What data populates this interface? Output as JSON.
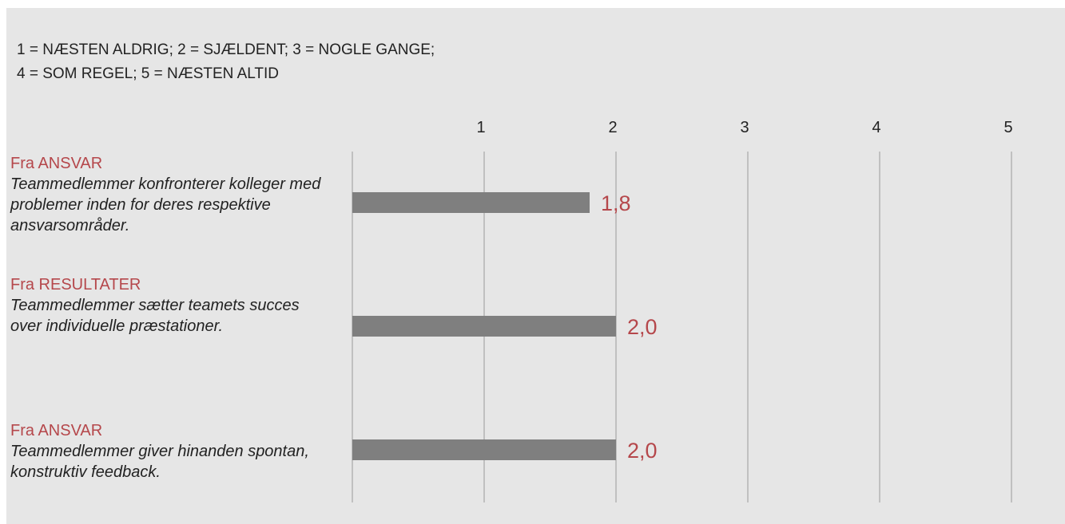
{
  "legend": {
    "line1": "1 = NÆSTEN ALDRIG; 2 = SJÆLDENT; 3 = NOGLE GANGE;",
    "line2": "4 = SOM REGEL; 5 = NÆSTEN ALTID"
  },
  "colors": {
    "background": "#e6e6e6",
    "bar": "#7f7f7f",
    "value_label": "#b5474b",
    "source_label": "#b5474b",
    "gridline": "#b3b3b3"
  },
  "chart_data": {
    "type": "bar",
    "orientation": "horizontal",
    "x_ticks": [
      "1",
      "2",
      "3",
      "4",
      "5"
    ],
    "xlim": [
      0,
      5
    ],
    "grid": true,
    "categories": [
      {
        "source": "Fra ANSVAR",
        "statement": "Teammedlemmer konfronterer kolleger med problemer inden for deres respektive ansvarsområder."
      },
      {
        "source": "Fra RESULTATER",
        "statement": "Teammedlemmer sætter teamets succes over individuelle præstationer."
      },
      {
        "source": "Fra ANSVAR",
        "statement": "Teammedlemmer giver hinanden spontan, konstruktiv feedback."
      }
    ],
    "values": [
      1.8,
      2.0,
      2.0
    ],
    "value_labels": [
      "1,8",
      "2,0",
      "2,0"
    ]
  }
}
